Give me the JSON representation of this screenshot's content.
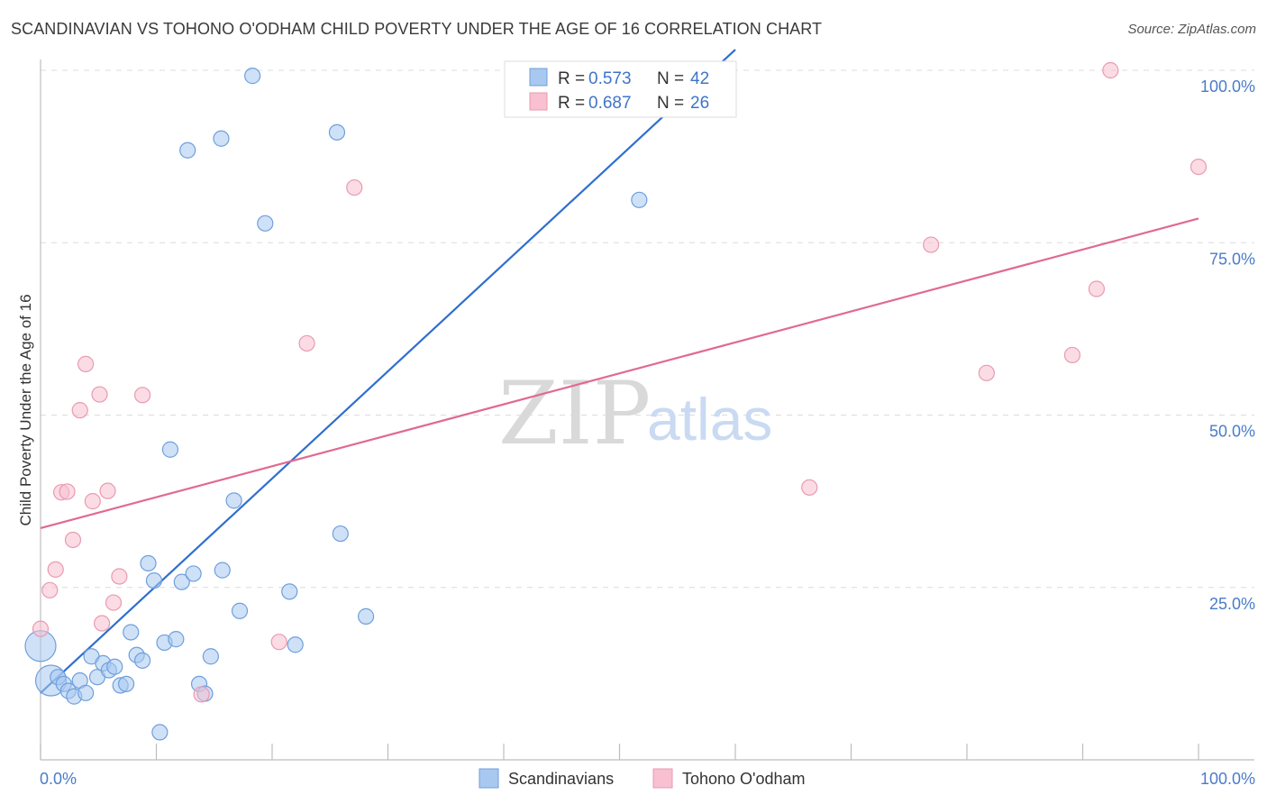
{
  "header": {
    "title": "SCANDINAVIAN VS TOHONO O'ODHAM CHILD POVERTY UNDER THE AGE OF 16 CORRELATION CHART",
    "source": "Source: ZipAtlas.com"
  },
  "watermark": {
    "zip": "ZIP",
    "atlas": "atlas"
  },
  "legend": {
    "rows": [
      {
        "r_label": "R =",
        "r_value": "0.573",
        "n_label": "N =",
        "n_value": "42"
      },
      {
        "r_label": "R =",
        "r_value": "0.687",
        "n_label": "N =",
        "n_value": "26"
      }
    ]
  },
  "colors": {
    "blue_fill": "#a8c8f0",
    "blue_stroke": "#6f9fdc",
    "blue_line": "#2f6fce",
    "pink_fill": "#f8c0d0",
    "pink_stroke": "#e99ab2",
    "pink_line": "#e06a90",
    "tick_text": "#4a7cc9",
    "grid": "#dcdcdc"
  },
  "chart_data": {
    "type": "scatter",
    "title": "SCANDINAVIAN VS TOHONO O'ODHAM CHILD POVERTY UNDER THE AGE OF 16 CORRELATION CHART",
    "xlabel": "",
    "ylabel": "Child Poverty Under the Age of 16",
    "xlim": [
      0,
      100
    ],
    "ylim": [
      0,
      100
    ],
    "x_ticks": [
      "0.0%",
      "100.0%"
    ],
    "y_ticks": [
      "25.0%",
      "50.0%",
      "75.0%",
      "100.0%"
    ],
    "grid": true,
    "legend_position": "top-center",
    "series": [
      {
        "name": "Scandinavians",
        "color": "#a8c8f0",
        "r": 0.573,
        "n": 42,
        "trend": {
          "x": [
            0,
            60
          ],
          "y": [
            9.7,
            103
          ]
        },
        "points": [
          {
            "x": 0.0,
            "y": 16.5,
            "big": true
          },
          {
            "x": 0.9,
            "y": 11.5,
            "big": true
          },
          {
            "x": 1.5,
            "y": 12.0
          },
          {
            "x": 2.0,
            "y": 11.0
          },
          {
            "x": 2.4,
            "y": 10.0
          },
          {
            "x": 2.9,
            "y": 9.2
          },
          {
            "x": 3.4,
            "y": 11.5
          },
          {
            "x": 3.9,
            "y": 9.7
          },
          {
            "x": 4.4,
            "y": 15.0
          },
          {
            "x": 4.9,
            "y": 12.0
          },
          {
            "x": 5.4,
            "y": 14.0
          },
          {
            "x": 5.9,
            "y": 13.0
          },
          {
            "x": 6.4,
            "y": 13.5
          },
          {
            "x": 6.9,
            "y": 10.8
          },
          {
            "x": 7.4,
            "y": 11.0
          },
          {
            "x": 7.8,
            "y": 18.5
          },
          {
            "x": 8.3,
            "y": 15.2
          },
          {
            "x": 8.8,
            "y": 14.4
          },
          {
            "x": 9.3,
            "y": 28.5
          },
          {
            "x": 9.8,
            "y": 26.0
          },
          {
            "x": 10.3,
            "y": 4.0
          },
          {
            "x": 10.7,
            "y": 17.0
          },
          {
            "x": 11.2,
            "y": 45.0
          },
          {
            "x": 11.7,
            "y": 17.5
          },
          {
            "x": 12.2,
            "y": 25.8
          },
          {
            "x": 12.7,
            "y": 88.4
          },
          {
            "x": 13.2,
            "y": 27.0
          },
          {
            "x": 13.7,
            "y": 11.0
          },
          {
            "x": 14.2,
            "y": 9.6
          },
          {
            "x": 14.7,
            "y": 15.0
          },
          {
            "x": 15.6,
            "y": 90.1
          },
          {
            "x": 15.7,
            "y": 27.5
          },
          {
            "x": 16.7,
            "y": 37.6
          },
          {
            "x": 17.2,
            "y": 21.6
          },
          {
            "x": 18.3,
            "y": 99.2
          },
          {
            "x": 19.4,
            "y": 77.8
          },
          {
            "x": 21.5,
            "y": 24.4
          },
          {
            "x": 22.0,
            "y": 16.7
          },
          {
            "x": 25.6,
            "y": 91.0
          },
          {
            "x": 25.9,
            "y": 32.8
          },
          {
            "x": 28.1,
            "y": 20.8
          },
          {
            "x": 51.7,
            "y": 81.2
          }
        ]
      },
      {
        "name": "Tohono O'odham",
        "color": "#f8c0d0",
        "r": 0.687,
        "n": 26,
        "trend": {
          "x": [
            0,
            100
          ],
          "y": [
            33.6,
            78.5
          ]
        },
        "points": [
          {
            "x": 0.0,
            "y": 19.0
          },
          {
            "x": 0.8,
            "y": 24.6
          },
          {
            "x": 1.3,
            "y": 27.6
          },
          {
            "x": 1.8,
            "y": 38.8
          },
          {
            "x": 2.3,
            "y": 38.9
          },
          {
            "x": 2.8,
            "y": 31.9
          },
          {
            "x": 3.4,
            "y": 50.7
          },
          {
            "x": 3.9,
            "y": 57.4
          },
          {
            "x": 4.5,
            "y": 37.5
          },
          {
            "x": 5.1,
            "y": 53.0
          },
          {
            "x": 5.3,
            "y": 19.8
          },
          {
            "x": 5.8,
            "y": 39.0
          },
          {
            "x": 6.3,
            "y": 22.8
          },
          {
            "x": 6.8,
            "y": 26.6
          },
          {
            "x": 8.8,
            "y": 52.9
          },
          {
            "x": 13.9,
            "y": 9.5
          },
          {
            "x": 20.6,
            "y": 17.1
          },
          {
            "x": 23.0,
            "y": 60.4
          },
          {
            "x": 27.1,
            "y": 83.0
          },
          {
            "x": 66.4,
            "y": 39.5
          },
          {
            "x": 76.9,
            "y": 74.7
          },
          {
            "x": 81.7,
            "y": 56.1
          },
          {
            "x": 89.1,
            "y": 58.7
          },
          {
            "x": 91.2,
            "y": 68.3
          },
          {
            "x": 92.4,
            "y": 100.0
          },
          {
            "x": 100.0,
            "y": 86.0
          }
        ]
      }
    ]
  }
}
